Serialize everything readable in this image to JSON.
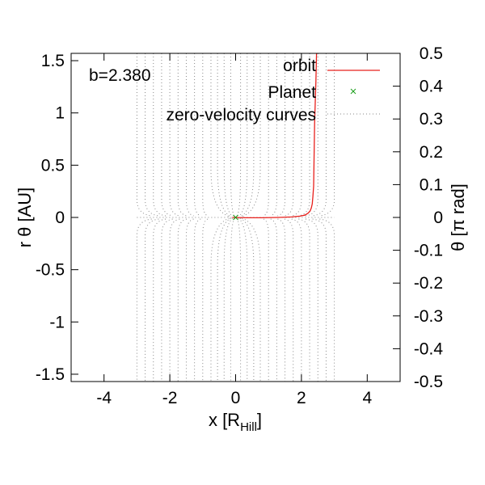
{
  "chart_data": {
    "type": "line",
    "xlabel": "x [R",
    "xlabel_sub": "Hill",
    "xlabel_close": "]",
    "ylabel": "r θ [AU]",
    "y2label": "θ [π rad]",
    "xlim": [
      -5,
      5
    ],
    "ylim": [
      -1.57,
      1.57
    ],
    "y2lim": [
      -0.5,
      0.5
    ],
    "xticks": [
      -4,
      -2,
      0,
      2,
      4
    ],
    "xtick_labels": [
      "-4",
      "-2",
      "0",
      "2",
      "4"
    ],
    "yticks": [
      -1.5,
      -1,
      -0.5,
      0,
      0.5,
      1,
      1.5
    ],
    "ytick_labels": [
      "-1.5",
      "-1",
      "-0.5",
      "0",
      "0.5",
      "1",
      "1.5"
    ],
    "y2ticks": [
      -0.5,
      -0.4,
      -0.3,
      -0.2,
      -0.1,
      0,
      0.1,
      0.2,
      0.3,
      0.4,
      0.5
    ],
    "y2tick_labels": [
      "-0.5",
      "-0.4",
      "-0.3",
      "-0.2",
      "-0.1",
      "0",
      "0.1",
      "0.2",
      "0.3",
      "0.4",
      "0.5"
    ],
    "annotation": "b=2.380",
    "legend": {
      "position": "top-right",
      "entries": [
        "orbit",
        "Planet",
        "zero-velocity curves"
      ]
    },
    "series": [
      {
        "name": "orbit",
        "color": "#e8201c",
        "x": [
          -0.1,
          0.3,
          0.8,
          1.3,
          1.7,
          1.95,
          2.1,
          2.2,
          2.26,
          2.3,
          2.33,
          2.35,
          2.37,
          2.38,
          2.39,
          2.4,
          2.42,
          2.44,
          2.46
        ],
        "y": [
          0.0,
          -0.003,
          -0.003,
          0.0,
          0.005,
          0.012,
          0.022,
          0.04,
          0.06,
          0.09,
          0.13,
          0.2,
          0.3,
          0.5,
          0.7,
          0.9,
          1.1,
          1.3,
          1.57
        ]
      },
      {
        "name": "Planet",
        "color": "#1a9e1a",
        "x": [
          0
        ],
        "y": [
          0
        ]
      },
      {
        "name": "zero-velocity curves",
        "color": "#888888",
        "outer_x": [
          -3.0,
          -2.75,
          -2.5,
          -2.25,
          -2.0,
          -1.75,
          -1.5,
          -1.25,
          -1.0,
          1.0,
          1.25,
          1.5,
          1.75,
          2.0,
          2.25,
          2.5,
          2.75,
          3.0
        ],
        "inner_x": [
          -0.75,
          -0.55,
          -0.35,
          -0.15,
          0.15,
          0.35,
          0.55,
          0.75
        ]
      }
    ]
  }
}
